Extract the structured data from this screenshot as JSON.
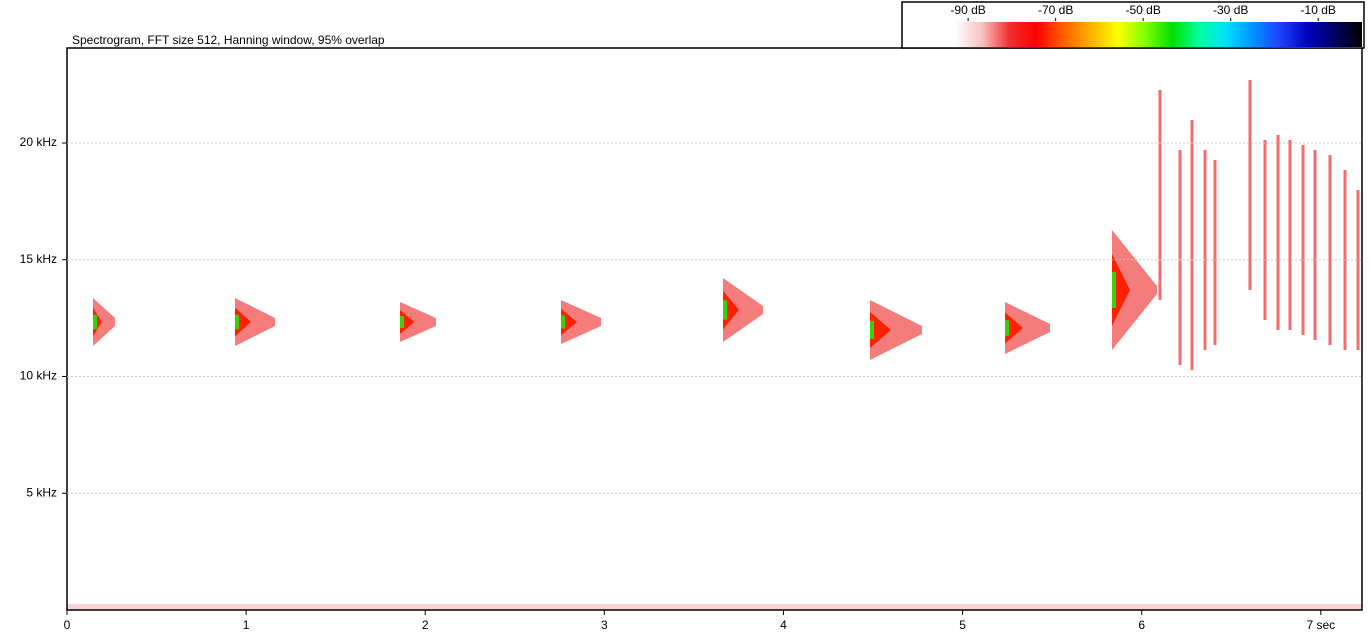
{
  "chart_data": {
    "type": "spectrogram",
    "title": "Spectrogram, FFT size 512, Hanning window, 95% overlap",
    "xlim": [
      0,
      7.23
    ],
    "xticks": [
      0,
      1,
      2,
      3,
      4,
      5,
      6,
      {
        "value": 7,
        "label": "7 sec"
      }
    ],
    "ylim": [
      0,
      24.07
    ],
    "yticks": [
      {
        "value": 5,
        "label": "5 kHz"
      },
      {
        "value": 10,
        "label": "10 kHz"
      },
      {
        "value": 15,
        "label": "15 kHz"
      },
      {
        "value": 20,
        "label": "20 kHz"
      }
    ],
    "grid": true,
    "colorbar": {
      "lim": [
        -93,
        0
      ],
      "ticks": [
        {
          "value": -90,
          "label": "-90 dB"
        },
        {
          "value": -70,
          "label": "-70 dB"
        },
        {
          "value": -50,
          "label": "-50 dB"
        },
        {
          "value": -30,
          "label": "-30 dB"
        },
        {
          "value": -10,
          "label": "-10 dB"
        }
      ],
      "colors": [
        "#ffffff",
        "#f8c0c0",
        "#f03030",
        "#ff0000",
        "#ff6000",
        "#ffb000",
        "#ffff00",
        "#80ff00",
        "#00e000",
        "#00ffa0",
        "#00e0ff",
        "#0090ff",
        "#2040ff",
        "#0000c0",
        "#000060",
        "#000000"
      ]
    }
  }
}
